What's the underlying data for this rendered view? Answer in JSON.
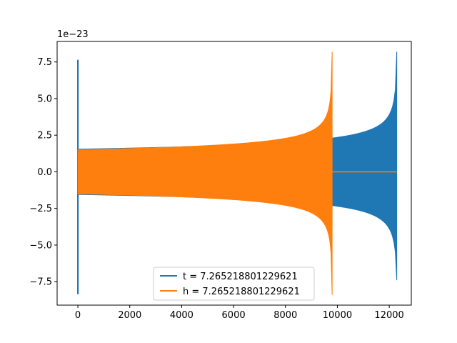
{
  "chart_data": {
    "type": "line",
    "title": "",
    "xlabel": "",
    "ylabel": "",
    "y_offset_label": "1e−23",
    "xlim": [
      -800,
      12850
    ],
    "ylim": [
      -9.1,
      8.9
    ],
    "x_ticks": [
      0,
      2000,
      4000,
      6000,
      8000,
      10000,
      12000
    ],
    "x_tick_labels": [
      "0",
      "2000",
      "4000",
      "6000",
      "8000",
      "10000",
      "12000"
    ],
    "y_ticks": [
      -7.5,
      -5.0,
      -2.5,
      0.0,
      2.5,
      5.0,
      7.5
    ],
    "y_tick_labels": [
      "−7.5",
      "−5.0",
      "−2.5",
      "0.0",
      "2.5",
      "5.0",
      "7.5"
    ],
    "grid": false,
    "legend_position": "lower-center",
    "series": [
      {
        "name": "t = 7.265218801229621",
        "color": "#1f77b4",
        "kind": "chirp",
        "spike_x": 0,
        "spike_min": -8.35,
        "spike_max": 7.65,
        "x_start": 50,
        "x_end": 12290,
        "amp_start": 1.55,
        "amp_end": 8.2,
        "amp_min_end": -7.4
      },
      {
        "name": "h = 7.265218801229621",
        "color": "#ff7f0e",
        "kind": "chirp",
        "x_start": 0,
        "x_end": 9800,
        "amp_start": 1.5,
        "amp_end": 8.2,
        "amp_min_end": -8.4,
        "tail_x_end": 12290,
        "tail_value": 0.0
      }
    ]
  }
}
